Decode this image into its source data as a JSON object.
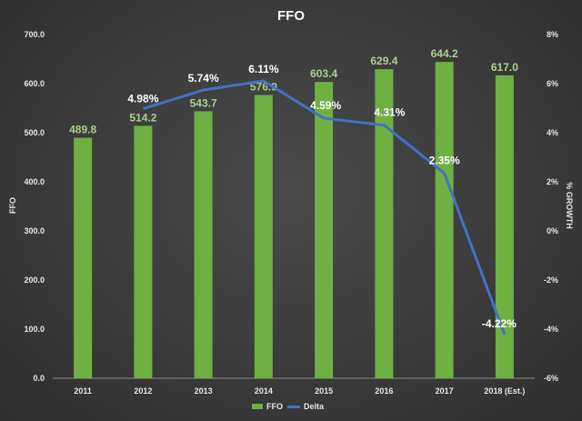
{
  "chart_data": {
    "type": "bar",
    "title": "FFO",
    "categories": [
      "2011",
      "2012",
      "2013",
      "2014",
      "2015",
      "2016",
      "2017",
      "2018 (Est.)"
    ],
    "series": [
      {
        "name": "FFO",
        "type": "bar",
        "axis": "left",
        "values": [
          489.8,
          514.2,
          543.7,
          576.9,
          603.4,
          629.4,
          644.2,
          617.0
        ],
        "labels": [
          "489.8",
          "514.2",
          "543.7",
          "576.9",
          "603.4",
          "629.4",
          "644.2",
          "617.0"
        ]
      },
      {
        "name": "Delta",
        "type": "line",
        "axis": "right",
        "values": [
          null,
          4.98,
          5.74,
          6.11,
          4.59,
          4.31,
          2.35,
          -4.22
        ],
        "labels": [
          "",
          "4.98%",
          "5.74%",
          "6.11%",
          "4.59%",
          "4.31%",
          "2.35%",
          "-4.22%"
        ]
      }
    ],
    "ylabel": "FFO",
    "y2label": "% GROWTH",
    "ylim": [
      0,
      700
    ],
    "y2lim": [
      -6,
      8
    ],
    "yticks": [
      "0.0",
      "100.0",
      "200.0",
      "300.0",
      "400.0",
      "500.0",
      "600.0",
      "700.0"
    ],
    "y2ticks": [
      "-6%",
      "-4%",
      "-2%",
      "0%",
      "2%",
      "4%",
      "6%",
      "8%"
    ],
    "grid": false,
    "legend": "bottom",
    "colors": {
      "bar": "#6fb043",
      "line": "#4472c4",
      "bar_label": "#a9d18e",
      "line_label": "#ffffff"
    }
  }
}
